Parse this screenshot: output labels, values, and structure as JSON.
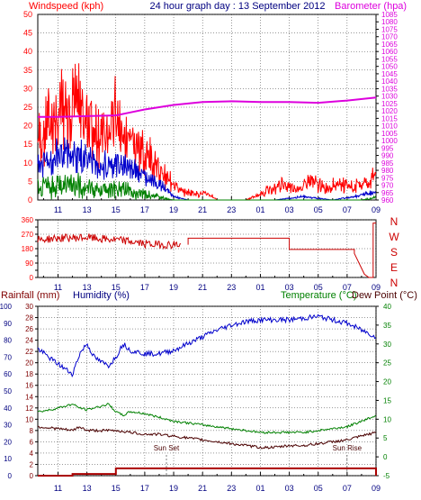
{
  "header": {
    "title": "24 hour graph day : 13 September 2012",
    "left_label": "Windspeed (kph)",
    "right_label": "Barometer (hpa)"
  },
  "colors": {
    "red": "#ff0000",
    "blue": "#0000cc",
    "green": "#008000",
    "magenta": "#dd00dd",
    "darkred": "#cc0000",
    "brown": "#4a0000",
    "navy": "#000080",
    "grid": "#333333"
  },
  "chart_data": [
    {
      "type": "line",
      "name": "wind-barometer",
      "x_ticks": [
        "11",
        "13",
        "15",
        "17",
        "19",
        "21",
        "23",
        "01",
        "03",
        "05",
        "07",
        "09"
      ],
      "left_axis": {
        "label": "Windspeed (kph)",
        "range": [
          0,
          50
        ],
        "ticks": [
          0,
          5,
          10,
          15,
          20,
          25,
          30,
          35,
          40,
          45,
          50
        ]
      },
      "right_axis": {
        "label": "Barometer (hpa)",
        "range": [
          960,
          1085
        ],
        "ticks": [
          960,
          965,
          970,
          975,
          980,
          985,
          990,
          995,
          1000,
          1005,
          1010,
          1015,
          1020,
          1025,
          1030,
          1035,
          1040,
          1045,
          1050,
          1055,
          1060,
          1065,
          1070,
          1075,
          1080,
          1085
        ]
      },
      "series": {
        "gust_envelope": {
          "x": [
            9.6,
            10.5,
            11.5,
            12.5,
            13.5,
            14.5,
            15.0,
            15.5,
            16.5,
            17.5,
            18.5,
            19.0,
            19.5,
            20.5,
            21.5,
            22.0,
            24.0,
            25.5,
            26.5,
            27.5,
            28.5,
            29.5,
            30.5,
            31.5,
            32.5,
            33.0
          ],
          "y": [
            18,
            25,
            28,
            30,
            22,
            20,
            30,
            20,
            17,
            12,
            8,
            5,
            3,
            2,
            2,
            0,
            0,
            3,
            5,
            3,
            6,
            4,
            5,
            4,
            6,
            8
          ]
        },
        "average_envelope": {
          "x": [
            9.6,
            10.5,
            11.5,
            12.5,
            13.5,
            14.5,
            15.0,
            15.5,
            16.5,
            17.5,
            18.5,
            19.0,
            20.0,
            21.0,
            22.0,
            24.0,
            26.0,
            28.0,
            30.0,
            31.5,
            32.5,
            33.0
          ],
          "y": [
            10,
            12,
            13,
            13,
            11,
            10,
            11,
            10,
            9,
            6,
            3,
            1,
            0,
            0,
            0,
            0,
            0,
            1,
            0,
            1,
            2,
            2
          ]
        },
        "lull_envelope": {
          "x": [
            9.6,
            10.5,
            11.5,
            12.5,
            13.5,
            14.5,
            15.0,
            15.5,
            16.5,
            17.5,
            18.0,
            19.0,
            20.0,
            24.0,
            28.0,
            32.0,
            33.0
          ],
          "y": [
            5,
            6,
            6,
            6,
            4,
            4,
            5,
            4,
            3,
            2,
            1,
            0,
            0,
            0,
            0,
            0,
            1
          ]
        },
        "barometer": {
          "x": [
            9.6,
            11.0,
            13.0,
            15.0,
            16.0,
            17.0,
            19.0,
            21.0,
            23.0,
            25.0,
            27.0,
            29.0,
            31.0,
            33.0
          ],
          "y": [
            1016,
            1016,
            1016.5,
            1017,
            1019,
            1021,
            1024,
            1026,
            1026.5,
            1026,
            1026,
            1025.5,
            1027,
            1029
          ]
        }
      }
    },
    {
      "type": "line",
      "name": "wind-direction",
      "x_ticks": [
        "11",
        "13",
        "15",
        "17",
        "19",
        "21",
        "23",
        "01",
        "03",
        "05",
        "07",
        "09"
      ],
      "left_axis": {
        "range": [
          0,
          360
        ],
        "ticks": [
          0,
          45,
          90,
          135,
          180,
          225,
          270,
          315,
          360
        ]
      },
      "right_axis_labels": [
        "N",
        "W",
        "S",
        "E",
        "N"
      ],
      "series": {
        "direction": {
          "x": [
            9.6,
            11.0,
            13.0,
            14.0,
            15.0,
            16.0,
            17.0,
            18.0,
            19.0,
            19.5,
            20.0,
            20.0,
            27.0,
            27.0,
            31.5,
            31.5,
            32.2,
            32.5,
            32.8,
            32.8,
            33.0
          ],
          "y": [
            235,
            245,
            250,
            240,
            235,
            225,
            210,
            205,
            205,
            205,
            205,
            245,
            245,
            175,
            175,
            150,
            20,
            0,
            0,
            340,
            340
          ]
        }
      }
    },
    {
      "type": "line",
      "name": "rain-humidity-temperature",
      "x_ticks": [
        "11",
        "13",
        "15",
        "17",
        "19",
        "21",
        "23",
        "01",
        "03",
        "05",
        "07",
        "09"
      ],
      "left_axis_rain": {
        "label": "Rainfall (mm)",
        "range": [
          0,
          30
        ],
        "ticks": [
          0,
          2,
          4,
          6,
          8,
          10,
          12,
          14,
          16,
          18,
          20,
          22,
          24,
          26,
          28,
          30
        ]
      },
      "left_axis_humidity": {
        "label": "Humidity (%)",
        "range": [
          0,
          100
        ],
        "ticks": [
          0,
          10,
          20,
          30,
          40,
          50,
          60,
          70,
          80,
          90,
          100
        ]
      },
      "right_axis_temperature": {
        "label": "Temperature (°C)",
        "label2": "Dew Point (°C)",
        "range": [
          -5,
          40
        ],
        "ticks": [
          -5,
          0,
          5,
          10,
          15,
          20,
          25,
          30,
          35,
          40
        ]
      },
      "annotations": [
        {
          "text": "Sun Set",
          "x": 18.5
        },
        {
          "text": "Sun Rise",
          "x": 31.0
        }
      ],
      "series": {
        "humidity": {
          "x": [
            9.6,
            10.5,
            11.5,
            12.0,
            12.5,
            13.0,
            13.5,
            14.0,
            14.5,
            15.0,
            15.5,
            16.0,
            17.0,
            18.0,
            19.0,
            20.0,
            21.0,
            22.0,
            23.0,
            24.0,
            25.0,
            26.0,
            27.0,
            28.0,
            29.0,
            30.0,
            31.0,
            32.0,
            33.0
          ],
          "y": [
            75,
            69,
            63,
            60,
            72,
            78,
            70,
            67,
            65,
            70,
            78,
            74,
            72,
            72,
            74,
            78,
            82,
            86,
            89,
            91,
            92,
            92,
            92,
            93,
            94,
            92,
            90,
            86,
            82
          ]
        },
        "temperature": {
          "x": [
            9.6,
            10.5,
            11.5,
            12.0,
            12.5,
            13.0,
            13.5,
            14.0,
            14.5,
            15.0,
            15.5,
            16.0,
            17.0,
            18.0,
            19.0,
            20.0,
            21.0,
            22.0,
            23.0,
            24.0,
            25.0,
            26.0,
            27.0,
            28.0,
            29.0,
            30.0,
            31.0,
            32.0,
            33.0
          ],
          "y": [
            12,
            12.5,
            13.5,
            14,
            13,
            12.5,
            13,
            13.5,
            14,
            12,
            11,
            12,
            11.5,
            10.5,
            9.5,
            9,
            8.5,
            8,
            7.5,
            7,
            6.5,
            6.5,
            6.5,
            6.5,
            7,
            7.5,
            8,
            9.5,
            11
          ]
        },
        "dew_point": {
          "x": [
            9.6,
            11.0,
            12.0,
            12.5,
            13.0,
            14.0,
            15.0,
            16.0,
            17.0,
            18.0,
            19.0,
            20.0,
            21.0,
            22.0,
            23.0,
            24.0,
            25.0,
            26.0,
            27.0,
            28.0,
            29.0,
            30.0,
            31.0,
            32.0,
            33.0
          ],
          "y": [
            8,
            7.5,
            7,
            8,
            7,
            7,
            7,
            6.5,
            6,
            6,
            5.5,
            5,
            4.5,
            4,
            3.5,
            3,
            2.5,
            2.5,
            3,
            3,
            3.5,
            4,
            4.5,
            5.5,
            6.5
          ]
        },
        "rainfall": {
          "x": [
            9.6,
            12.0,
            12.0,
            15.0,
            15.0,
            33.0,
            33.0
          ],
          "y": [
            0,
            0,
            0.3,
            0.3,
            1.3,
            1.3,
            0
          ]
        }
      }
    }
  ]
}
